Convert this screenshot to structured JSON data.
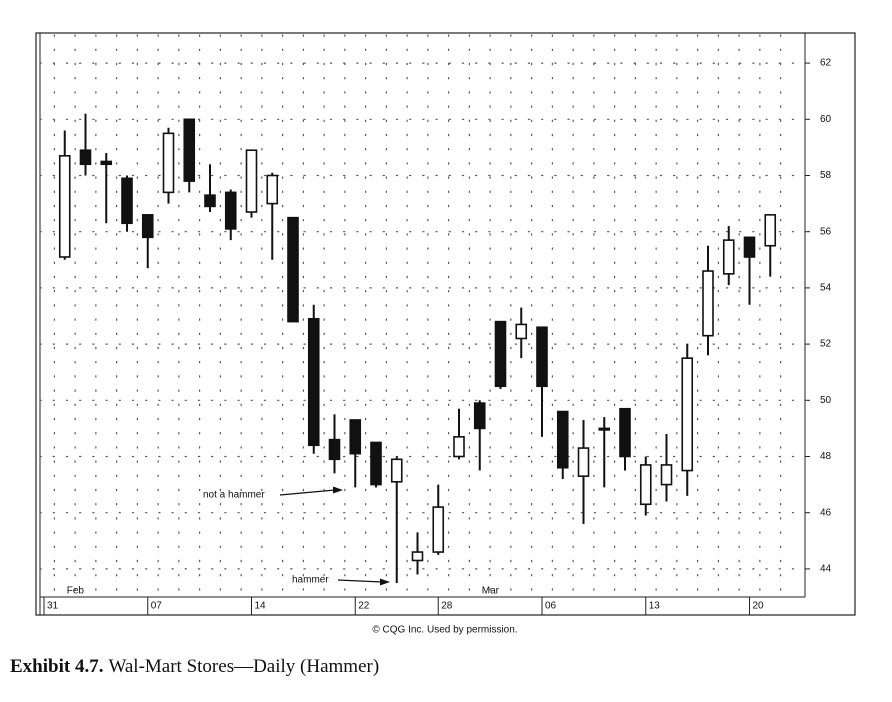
{
  "chart_data": {
    "type": "candlestick",
    "categories": [
      "31",
      null,
      null,
      null,
      null,
      "07",
      null,
      null,
      null,
      null,
      "14",
      null,
      null,
      null,
      null,
      "22",
      null,
      null,
      null,
      "28",
      null,
      null,
      null,
      null,
      "06",
      null,
      null,
      null,
      null,
      "13",
      null,
      null,
      null,
      null,
      "20",
      null
    ],
    "months": [
      null,
      "Feb",
      null,
      null,
      null,
      null,
      null,
      null,
      null,
      null,
      null,
      null,
      null,
      null,
      null,
      null,
      null,
      null,
      null,
      null,
      null,
      "Mar",
      null,
      null,
      null,
      null,
      null,
      null,
      null,
      null,
      null,
      null,
      null,
      null,
      null,
      null
    ],
    "series": {
      "open": [
        null,
        55.1,
        58.9,
        58.5,
        57.9,
        56.6,
        57.4,
        60.0,
        57.3,
        57.4,
        56.7,
        57.0,
        56.5,
        52.9,
        48.6,
        49.3,
        48.5,
        47.1,
        44.3,
        44.6,
        48.0,
        49.9,
        52.8,
        52.2,
        52.6,
        49.6,
        47.3,
        49.0,
        49.7,
        46.3,
        47.0,
        47.5,
        52.3,
        54.5,
        55.8,
        55.5
      ],
      "high": [
        null,
        59.6,
        60.2,
        58.8,
        58.0,
        56.6,
        59.7,
        60.0,
        58.4,
        57.5,
        58.9,
        58.1,
        56.5,
        53.4,
        49.5,
        49.3,
        48.5,
        48.0,
        45.3,
        47.0,
        49.7,
        50.0,
        52.8,
        53.3,
        52.6,
        49.6,
        49.3,
        49.4,
        49.7,
        48.0,
        48.8,
        52.0,
        55.5,
        56.2,
        55.8,
        56.6
      ],
      "low": [
        null,
        55.0,
        58.0,
        56.3,
        56.0,
        54.7,
        57.0,
        57.4,
        56.7,
        55.7,
        56.5,
        55.0,
        52.8,
        48.1,
        47.4,
        46.9,
        46.9,
        43.5,
        43.8,
        44.5,
        47.9,
        47.5,
        50.4,
        51.5,
        48.7,
        47.2,
        45.6,
        46.9,
        47.5,
        45.9,
        46.4,
        46.6,
        51.6,
        54.1,
        53.4,
        54.4
      ],
      "close": [
        null,
        58.7,
        58.4,
        58.4,
        56.3,
        55.8,
        59.5,
        57.8,
        56.9,
        56.1,
        58.9,
        58.0,
        52.8,
        48.4,
        47.9,
        48.1,
        47.0,
        47.9,
        44.6,
        46.2,
        48.7,
        49.0,
        50.5,
        52.7,
        50.5,
        47.6,
        48.3,
        49.0,
        48.0,
        47.7,
        47.7,
        51.5,
        54.6,
        55.7,
        55.1,
        56.6
      ]
    },
    "up_color": "#ffffff",
    "down_color": "#111111",
    "ylim": [
      43,
      63
    ],
    "yticks": [
      44,
      46,
      48,
      50,
      52,
      54,
      56,
      58,
      60,
      62
    ],
    "grid": true,
    "annotations": [
      "not a hammer",
      "hammer"
    ],
    "credit": "© CQG Inc. Used by permission.",
    "caption_label": "Exhibit 4.7.",
    "caption_title": "Wal-Mart Stores—Daily (Hammer)"
  }
}
